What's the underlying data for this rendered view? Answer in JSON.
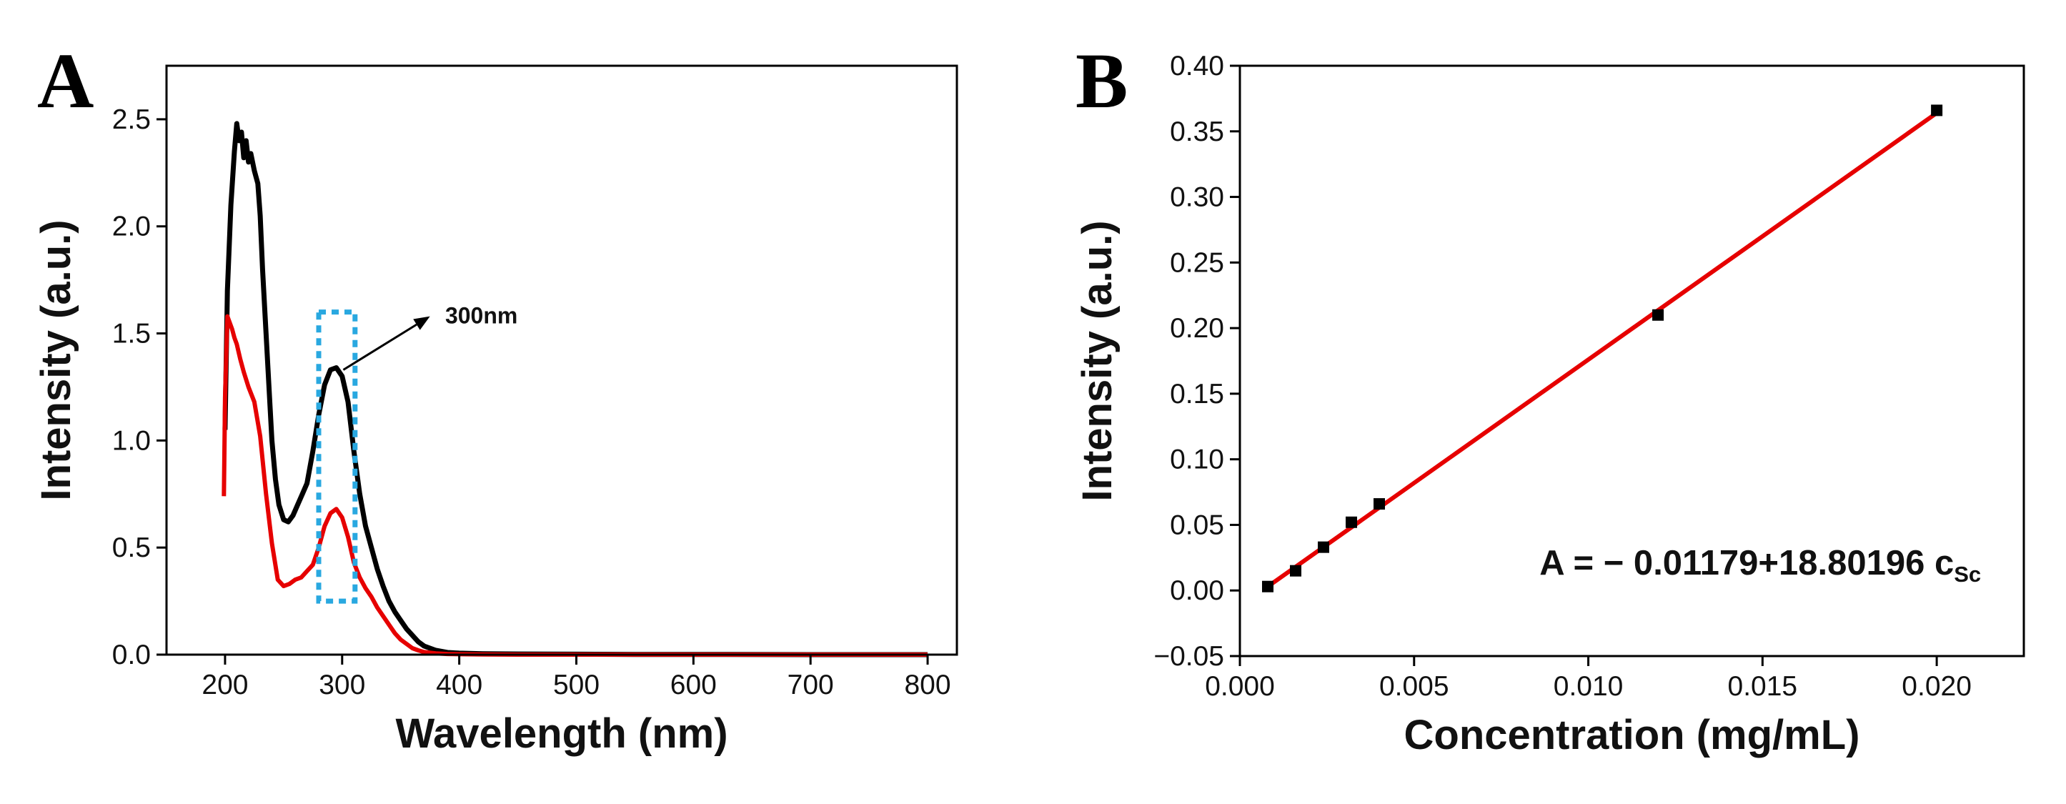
{
  "chart_data": [
    {
      "panel": "A",
      "type": "line",
      "xlabel": "Wavelength (nm)",
      "ylabel": "Intensity  (a.u.)",
      "xlim": [
        150,
        825
      ],
      "ylim": [
        0,
        2.75
      ],
      "xticks": [
        200,
        300,
        400,
        500,
        600,
        700,
        800
      ],
      "yticks": [
        0.0,
        0.5,
        1.0,
        1.5,
        2.0,
        2.5
      ],
      "grid": false,
      "series": [
        {
          "color": "#000000",
          "x": [
            200,
            202,
            205,
            208,
            210,
            212,
            214,
            216,
            218,
            220,
            222,
            225,
            228,
            230,
            232,
            235,
            238,
            240,
            243,
            246,
            250,
            254,
            258,
            262,
            266,
            270,
            275,
            280,
            285,
            290,
            295,
            300,
            305,
            310,
            315,
            320,
            325,
            330,
            335,
            340,
            345,
            350,
            355,
            360,
            365,
            370,
            375,
            380,
            385,
            390,
            400,
            420,
            450,
            500,
            550,
            600,
            700,
            800
          ],
          "y": [
            1.05,
            1.7,
            2.1,
            2.35,
            2.48,
            2.4,
            2.44,
            2.32,
            2.4,
            2.3,
            2.34,
            2.26,
            2.2,
            2.05,
            1.8,
            1.5,
            1.2,
            1.0,
            0.82,
            0.7,
            0.63,
            0.62,
            0.65,
            0.7,
            0.75,
            0.8,
            0.95,
            1.12,
            1.26,
            1.33,
            1.34,
            1.3,
            1.18,
            0.95,
            0.75,
            0.6,
            0.5,
            0.4,
            0.32,
            0.25,
            0.2,
            0.16,
            0.12,
            0.09,
            0.06,
            0.04,
            0.03,
            0.02,
            0.015,
            0.01,
            0.007,
            0.004,
            0.003,
            0.002,
            0.001,
            0.001,
            0.0,
            0.0
          ]
        },
        {
          "color": "#e60000",
          "x": [
            199,
            200,
            202,
            204,
            206,
            208,
            210,
            213,
            216,
            220,
            225,
            230,
            235,
            240,
            245,
            250,
            255,
            260,
            265,
            270,
            275,
            280,
            285,
            290,
            295,
            300,
            305,
            310,
            315,
            320,
            325,
            330,
            335,
            340,
            345,
            350,
            355,
            360,
            365,
            370,
            380,
            390,
            400,
            420,
            450,
            500,
            600,
            700,
            800
          ],
          "y": [
            0.74,
            1.2,
            1.58,
            1.55,
            1.52,
            1.48,
            1.45,
            1.38,
            1.32,
            1.25,
            1.18,
            1.02,
            0.75,
            0.52,
            0.35,
            0.32,
            0.33,
            0.35,
            0.36,
            0.39,
            0.42,
            0.5,
            0.6,
            0.66,
            0.68,
            0.64,
            0.55,
            0.43,
            0.36,
            0.31,
            0.27,
            0.22,
            0.18,
            0.14,
            0.1,
            0.07,
            0.05,
            0.03,
            0.02,
            0.012,
            0.006,
            0.003,
            0.002,
            0.001,
            0.0,
            0.0,
            0.0,
            0.0,
            0.0
          ]
        }
      ],
      "highlight_box": {
        "x0": 280,
        "x1": 311,
        "y0": 0.25,
        "y1": 1.6,
        "color": "#29a8e0"
      },
      "annotation": {
        "text": "300nm",
        "from": [
          301,
          1.33
        ],
        "to": [
          375,
          1.58
        ],
        "text_at": [
          388,
          1.58
        ]
      }
    },
    {
      "panel": "B",
      "type": "scatter",
      "xlabel": "Concentration (mg/mL)",
      "ylabel": "Intensity  (a.u.)",
      "xlim": [
        0.0,
        0.0225
      ],
      "ylim": [
        -0.05,
        0.4
      ],
      "xticks": [
        0.0,
        0.005,
        0.01,
        0.015,
        0.02
      ],
      "xtick_labels": [
        "0.000",
        "0.005",
        "0.010",
        "0.015",
        "0.020"
      ],
      "yticks": [
        -0.05,
        0.0,
        0.05,
        0.1,
        0.15,
        0.2,
        0.25,
        0.3,
        0.35,
        0.4
      ],
      "ytick_labels": [
        "−0.05",
        "0.00",
        "0.05",
        "0.10",
        "0.15",
        "0.20",
        "0.25",
        "0.30",
        "0.35",
        "0.40"
      ],
      "grid": false,
      "points": {
        "color": "#000000",
        "x": [
          0.0008,
          0.0016,
          0.0024,
          0.0032,
          0.004,
          0.012,
          0.02
        ],
        "y": [
          0.003,
          0.015,
          0.033,
          0.052,
          0.066,
          0.21,
          0.366
        ]
      },
      "fit_line": {
        "color": "#e60000",
        "x": [
          0.0008,
          0.02
        ],
        "y": [
          0.003,
          0.364
        ]
      },
      "equation": {
        "main": "A = − 0.01179+18.80196 c",
        "subscript": "Sc",
        "at": [
          0.0086,
          0.012
        ]
      }
    }
  ]
}
